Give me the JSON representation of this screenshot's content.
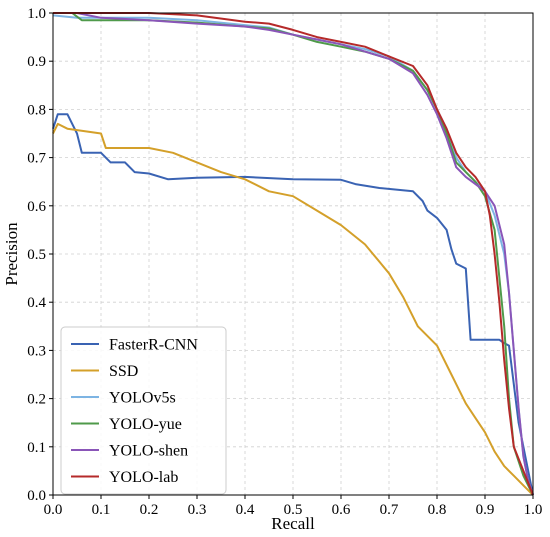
{
  "chart_data": {
    "type": "line",
    "xlabel": "Recall",
    "ylabel": "Precision",
    "xlim": [
      0.0,
      1.0
    ],
    "ylim": [
      0.0,
      1.0
    ],
    "xticks": [
      "0.0",
      "0.1",
      "0.2",
      "0.3",
      "0.4",
      "0.5",
      "0.6",
      "0.7",
      "0.8",
      "0.9",
      "1.0"
    ],
    "yticks": [
      "0.0",
      "0.1",
      "0.2",
      "0.3",
      "0.4",
      "0.5",
      "0.6",
      "0.7",
      "0.8",
      "0.9",
      "1.0"
    ],
    "grid": true,
    "legend_position": "bottom-left",
    "series": [
      {
        "name": "FasterR-CNN",
        "color": "#3a63b3",
        "points": [
          [
            0.0,
            0.76
          ],
          [
            0.01,
            0.79
          ],
          [
            0.03,
            0.79
          ],
          [
            0.05,
            0.75
          ],
          [
            0.06,
            0.71
          ],
          [
            0.1,
            0.71
          ],
          [
            0.12,
            0.69
          ],
          [
            0.15,
            0.69
          ],
          [
            0.17,
            0.67
          ],
          [
            0.2,
            0.667
          ],
          [
            0.24,
            0.655
          ],
          [
            0.3,
            0.658
          ],
          [
            0.4,
            0.66
          ],
          [
            0.5,
            0.655
          ],
          [
            0.6,
            0.654
          ],
          [
            0.63,
            0.645
          ],
          [
            0.68,
            0.637
          ],
          [
            0.75,
            0.63
          ],
          [
            0.77,
            0.61
          ],
          [
            0.78,
            0.59
          ],
          [
            0.8,
            0.575
          ],
          [
            0.82,
            0.55
          ],
          [
            0.83,
            0.51
          ],
          [
            0.84,
            0.48
          ],
          [
            0.86,
            0.47
          ],
          [
            0.87,
            0.322
          ],
          [
            0.93,
            0.322
          ],
          [
            0.94,
            0.315
          ],
          [
            0.95,
            0.31
          ],
          [
            0.97,
            0.15
          ],
          [
            0.99,
            0.05
          ],
          [
            1.0,
            0.0
          ]
        ]
      },
      {
        "name": "SSD",
        "color": "#d4a02a",
        "points": [
          [
            0.0,
            0.75
          ],
          [
            0.01,
            0.77
          ],
          [
            0.03,
            0.76
          ],
          [
            0.1,
            0.75
          ],
          [
            0.11,
            0.72
          ],
          [
            0.15,
            0.72
          ],
          [
            0.2,
            0.72
          ],
          [
            0.25,
            0.71
          ],
          [
            0.3,
            0.69
          ],
          [
            0.35,
            0.67
          ],
          [
            0.4,
            0.655
          ],
          [
            0.45,
            0.63
          ],
          [
            0.5,
            0.62
          ],
          [
            0.55,
            0.59
          ],
          [
            0.6,
            0.56
          ],
          [
            0.65,
            0.52
          ],
          [
            0.7,
            0.46
          ],
          [
            0.73,
            0.41
          ],
          [
            0.76,
            0.35
          ],
          [
            0.8,
            0.31
          ],
          [
            0.83,
            0.25
          ],
          [
            0.86,
            0.19
          ],
          [
            0.88,
            0.16
          ],
          [
            0.9,
            0.13
          ],
          [
            0.92,
            0.09
          ],
          [
            0.94,
            0.06
          ],
          [
            0.96,
            0.04
          ],
          [
            0.98,
            0.02
          ],
          [
            1.0,
            0.0
          ]
        ]
      },
      {
        "name": "YOLOv5s",
        "color": "#7db4e3",
        "points": [
          [
            0.0,
            0.995
          ],
          [
            0.05,
            0.99
          ],
          [
            0.1,
            0.99
          ],
          [
            0.2,
            0.99
          ],
          [
            0.3,
            0.985
          ],
          [
            0.4,
            0.975
          ],
          [
            0.45,
            0.97
          ],
          [
            0.5,
            0.955
          ],
          [
            0.55,
            0.945
          ],
          [
            0.6,
            0.935
          ],
          [
            0.65,
            0.925
          ],
          [
            0.7,
            0.91
          ],
          [
            0.75,
            0.88
          ],
          [
            0.78,
            0.84
          ],
          [
            0.8,
            0.8
          ],
          [
            0.82,
            0.76
          ],
          [
            0.84,
            0.7
          ],
          [
            0.86,
            0.67
          ],
          [
            0.88,
            0.65
          ],
          [
            0.9,
            0.63
          ],
          [
            0.92,
            0.58
          ],
          [
            0.94,
            0.5
          ],
          [
            0.95,
            0.42
          ],
          [
            0.96,
            0.3
          ],
          [
            0.97,
            0.18
          ],
          [
            0.98,
            0.08
          ],
          [
            0.99,
            0.03
          ],
          [
            1.0,
            0.0
          ]
        ]
      },
      {
        "name": "YOLO-yue",
        "color": "#4f9a4a",
        "points": [
          [
            0.0,
            1.0
          ],
          [
            0.04,
            1.0
          ],
          [
            0.06,
            0.985
          ],
          [
            0.1,
            0.985
          ],
          [
            0.2,
            0.985
          ],
          [
            0.3,
            0.98
          ],
          [
            0.4,
            0.972
          ],
          [
            0.45,
            0.968
          ],
          [
            0.5,
            0.955
          ],
          [
            0.55,
            0.94
          ],
          [
            0.6,
            0.93
          ],
          [
            0.65,
            0.92
          ],
          [
            0.7,
            0.905
          ],
          [
            0.75,
            0.88
          ],
          [
            0.78,
            0.84
          ],
          [
            0.8,
            0.8
          ],
          [
            0.82,
            0.75
          ],
          [
            0.84,
            0.69
          ],
          [
            0.86,
            0.67
          ],
          [
            0.88,
            0.65
          ],
          [
            0.9,
            0.62
          ],
          [
            0.92,
            0.55
          ],
          [
            0.93,
            0.45
          ],
          [
            0.94,
            0.35
          ],
          [
            0.95,
            0.2
          ],
          [
            0.96,
            0.1
          ],
          [
            0.98,
            0.04
          ],
          [
            1.0,
            0.0
          ]
        ]
      },
      {
        "name": "YOLO-shen",
        "color": "#8a55b8",
        "points": [
          [
            0.0,
            1.0
          ],
          [
            0.05,
            1.0
          ],
          [
            0.1,
            0.99
          ],
          [
            0.2,
            0.985
          ],
          [
            0.3,
            0.978
          ],
          [
            0.4,
            0.972
          ],
          [
            0.45,
            0.965
          ],
          [
            0.5,
            0.955
          ],
          [
            0.55,
            0.945
          ],
          [
            0.6,
            0.935
          ],
          [
            0.65,
            0.92
          ],
          [
            0.7,
            0.905
          ],
          [
            0.75,
            0.875
          ],
          [
            0.78,
            0.83
          ],
          [
            0.8,
            0.79
          ],
          [
            0.82,
            0.74
          ],
          [
            0.84,
            0.68
          ],
          [
            0.86,
            0.66
          ],
          [
            0.88,
            0.645
          ],
          [
            0.9,
            0.63
          ],
          [
            0.92,
            0.6
          ],
          [
            0.94,
            0.52
          ],
          [
            0.95,
            0.42
          ],
          [
            0.96,
            0.3
          ],
          [
            0.97,
            0.18
          ],
          [
            0.98,
            0.08
          ],
          [
            0.99,
            0.03
          ],
          [
            1.0,
            0.0
          ]
        ]
      },
      {
        "name": "YOLO-lab",
        "color": "#b52a2a",
        "points": [
          [
            0.0,
            1.0
          ],
          [
            0.2,
            1.0
          ],
          [
            0.3,
            0.995
          ],
          [
            0.4,
            0.982
          ],
          [
            0.45,
            0.978
          ],
          [
            0.5,
            0.965
          ],
          [
            0.55,
            0.95
          ],
          [
            0.6,
            0.94
          ],
          [
            0.65,
            0.93
          ],
          [
            0.7,
            0.91
          ],
          [
            0.75,
            0.89
          ],
          [
            0.78,
            0.85
          ],
          [
            0.8,
            0.8
          ],
          [
            0.82,
            0.76
          ],
          [
            0.84,
            0.71
          ],
          [
            0.86,
            0.68
          ],
          [
            0.88,
            0.66
          ],
          [
            0.9,
            0.63
          ],
          [
            0.91,
            0.58
          ],
          [
            0.92,
            0.5
          ],
          [
            0.93,
            0.4
          ],
          [
            0.94,
            0.28
          ],
          [
            0.95,
            0.18
          ],
          [
            0.96,
            0.1
          ],
          [
            0.98,
            0.05
          ],
          [
            1.0,
            0.0
          ]
        ]
      }
    ]
  }
}
